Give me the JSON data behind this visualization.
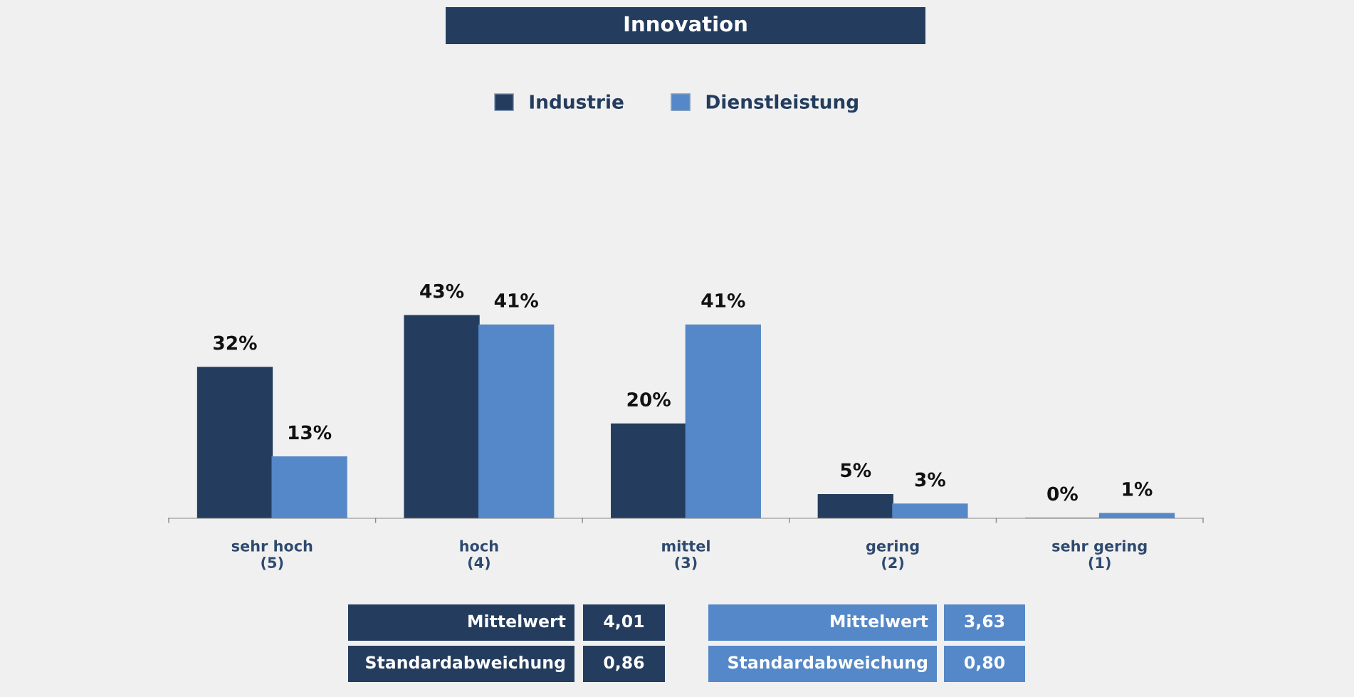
{
  "chart_data": {
    "type": "bar",
    "title": "Innovation",
    "categories": [
      "sehr hoch\n(5)",
      "hoch\n(4)",
      "mittel\n(3)",
      "gering\n(2)",
      "sehr gering\n(1)"
    ],
    "series": [
      {
        "name": "Industrie",
        "color": "#243d5e",
        "values": [
          32,
          43,
          20,
          5,
          0
        ],
        "value_labels": [
          "32%",
          "43%",
          "20%",
          "5%",
          "0%"
        ]
      },
      {
        "name": "Dienstleistung",
        "color": "#5588c8",
        "values": [
          13,
          41,
          41,
          3,
          1
        ],
        "value_labels": [
          "13%",
          "41%",
          "41%",
          "3%",
          "1%"
        ]
      }
    ],
    "legend": "top",
    "annotations": [
      "Mittelwert",
      "4,01",
      "Standardabweichung",
      "0,86",
      "Mittelwert",
      "3,63",
      "Standardabweichung",
      "0,80"
    ]
  }
}
